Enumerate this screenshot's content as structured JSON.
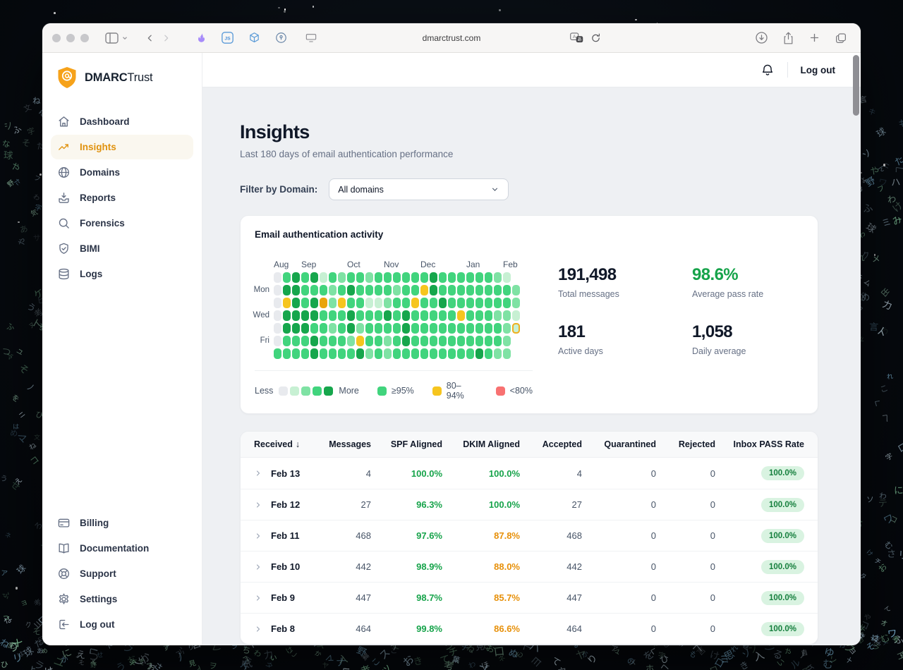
{
  "theme": {
    "accent_orange": "#e0920e",
    "brand_orange": "#f6a21a",
    "green": "#16a34a",
    "warn": "#e79009",
    "red": "#f87171",
    "today_ring": "#f0b01e"
  },
  "wallpaper": {
    "glyphs": "あいうえおかきくけこさしすせそたちつてとなにぬねのはひふへほまみむめもやゆよらりるれろわをんアイウエオカキクケコサシスセソタチツテトナニヌネノハヒフヘホマミムメヤユヨラリルレロワヲン出口入力見目思考野球雲電気言葉文字",
    "glyph_colors": [
      "#a9c9dd",
      "#cfe4f0",
      "#9fd3b4",
      "#7fb8d8",
      "#8fd9a8"
    ]
  },
  "browser": {
    "url": "dmarctrust.com"
  },
  "app": {
    "brand": {
      "bold": "DMARC",
      "light": "Trust"
    },
    "topbar": {
      "logout": "Log out"
    },
    "sidebar": {
      "items": [
        {
          "label": "Dashboard",
          "icon": "home",
          "active": false
        },
        {
          "label": "Insights",
          "icon": "trend",
          "active": true
        },
        {
          "label": "Domains",
          "icon": "globe",
          "active": false
        },
        {
          "label": "Reports",
          "icon": "inbox",
          "active": false
        },
        {
          "label": "Forensics",
          "icon": "search",
          "active": false
        },
        {
          "label": "BIMI",
          "icon": "shield",
          "active": false
        },
        {
          "label": "Logs",
          "icon": "db",
          "active": false
        }
      ],
      "footer": [
        {
          "label": "Billing",
          "icon": "card"
        },
        {
          "label": "Documentation",
          "icon": "book"
        },
        {
          "label": "Support",
          "icon": "lifebuoy"
        },
        {
          "label": "Settings",
          "icon": "gear"
        },
        {
          "label": "Log out",
          "icon": "logout"
        }
      ]
    },
    "page": {
      "title": "Insights",
      "subtitle": "Last 180 days of email authentication performance"
    },
    "filter": {
      "label": "Filter by Domain:",
      "value": "All domains"
    },
    "activity": {
      "title": "Email authentication activity",
      "months": [
        {
          "label": "Aug",
          "col": 1
        },
        {
          "label": "Sep",
          "col": 4
        },
        {
          "label": "Oct",
          "col": 9
        },
        {
          "label": "Nov",
          "col": 13
        },
        {
          "label": "Dec",
          "col": 17
        },
        {
          "label": "Jan",
          "col": 22
        },
        {
          "label": "Feb",
          "col": 26
        }
      ],
      "days": [
        {
          "label": "Mon",
          "row": 2
        },
        {
          "label": "Wed",
          "row": 4
        },
        {
          "label": "Fri",
          "row": 6
        }
      ],
      "grid": [
        "e3434132332333333433333321",
        "e443332343333233y4333333332",
        "ey434o2y3311233y33433333332",
        "e4444333433343433333y333221",
        "e4443323423333433333333332t",
        "e33343332y3323433333333332x",
        "33334333342323333333334322x"
      ],
      "palette": {
        "e": "#e8eaee",
        "1": "#c7f0d3",
        "2": "#7fe2a4",
        "3": "#41d47d",
        "4": "#16a64c",
        "y": "#f6c51f",
        "o": "#e9a40d",
        "t": "#c7f0d3"
      },
      "legend": {
        "less": "Less",
        "more": "More",
        "scale": [
          "#e8eaee",
          "#c7f0d3",
          "#7fe2a4",
          "#41d47d",
          "#16a64c"
        ],
        "categories": [
          {
            "label": "≥95%",
            "color": "#41d47d"
          },
          {
            "label": "80–94%",
            "color": "#f6c51f"
          },
          {
            "label": "<80%",
            "color": "#f87171"
          }
        ]
      },
      "stats": [
        {
          "value": "191,498",
          "label": "Total messages",
          "accent": false
        },
        {
          "value": "98.6%",
          "label": "Average pass rate",
          "accent": true
        },
        {
          "value": "181",
          "label": "Active days",
          "accent": false
        },
        {
          "value": "1,058",
          "label": "Daily average",
          "accent": false
        }
      ]
    },
    "table": {
      "sort_arrow": "↓",
      "columns": [
        "Received",
        "Messages",
        "SPF Aligned",
        "DKIM Aligned",
        "Accepted",
        "Quarantined",
        "Rejected",
        "Inbox PASS Rate"
      ],
      "rows": [
        {
          "date": "Feb 13",
          "messages": "4",
          "spf": "100.0%",
          "dkim": "100.0%",
          "dkim_warn": false,
          "accepted": "4",
          "quarantined": "0",
          "rejected": "0",
          "inbox": "100.0%"
        },
        {
          "date": "Feb 12",
          "messages": "27",
          "spf": "96.3%",
          "dkim": "100.0%",
          "dkim_warn": false,
          "accepted": "27",
          "quarantined": "0",
          "rejected": "0",
          "inbox": "100.0%"
        },
        {
          "date": "Feb 11",
          "messages": "468",
          "spf": "97.6%",
          "dkim": "87.8%",
          "dkim_warn": true,
          "accepted": "468",
          "quarantined": "0",
          "rejected": "0",
          "inbox": "100.0%"
        },
        {
          "date": "Feb 10",
          "messages": "442",
          "spf": "98.9%",
          "dkim": "88.0%",
          "dkim_warn": true,
          "accepted": "442",
          "quarantined": "0",
          "rejected": "0",
          "inbox": "100.0%"
        },
        {
          "date": "Feb 9",
          "messages": "447",
          "spf": "98.7%",
          "dkim": "85.7%",
          "dkim_warn": true,
          "accepted": "447",
          "quarantined": "0",
          "rejected": "0",
          "inbox": "100.0%"
        },
        {
          "date": "Feb 8",
          "messages": "464",
          "spf": "99.8%",
          "dkim": "86.6%",
          "dkim_warn": true,
          "accepted": "464",
          "quarantined": "0",
          "rejected": "0",
          "inbox": "100.0%"
        }
      ]
    }
  }
}
